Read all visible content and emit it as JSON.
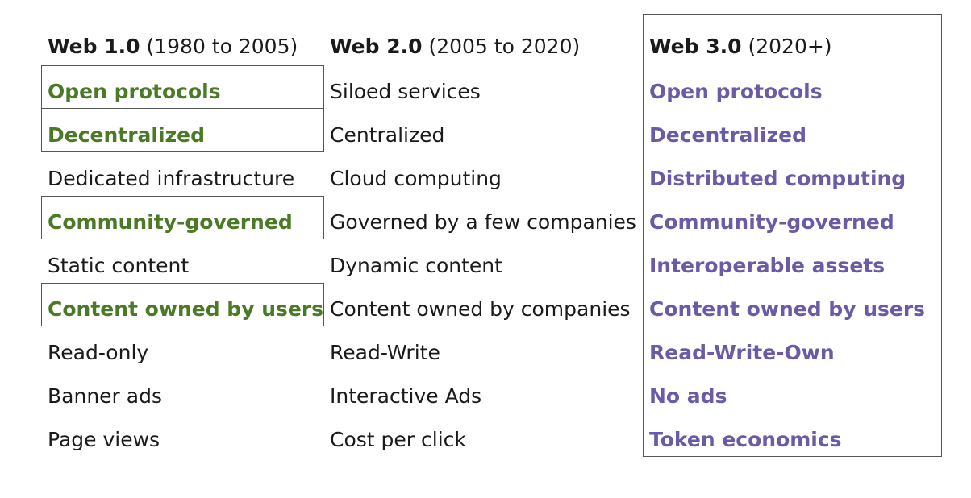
{
  "columns": [
    {
      "title": "Web 1.0",
      "years": "(1980 to 2005)",
      "items": [
        "Open protocols",
        "Decentralized",
        "Dedicated infrastructure",
        "Community-governed",
        "Static content",
        "Content owned by users",
        "Read-only",
        "Banner ads",
        "Page views"
      ]
    },
    {
      "title": "Web 2.0",
      "years": "(2005 to 2020)",
      "items": [
        "Siloed services",
        "Centralized",
        "Cloud computing",
        "Governed by a few companies",
        "Dynamic content",
        "Content owned by companies",
        "Read-Write",
        "Interactive Ads",
        "Cost per click"
      ]
    },
    {
      "title": "Web 3.0",
      "years": "(2020+)",
      "items": [
        "Open protocols",
        "Decentralized",
        "Distributed computing",
        "Community-governed",
        "Interoperable assets",
        "Content owned by users",
        "Read-Write-Own",
        "No ads",
        "Token economics"
      ]
    }
  ],
  "colors": {
    "web1_highlight": "#4a7a25",
    "web3_highlight": "#6b5aa6",
    "text": "#1a1a1a",
    "border": "#555555"
  }
}
